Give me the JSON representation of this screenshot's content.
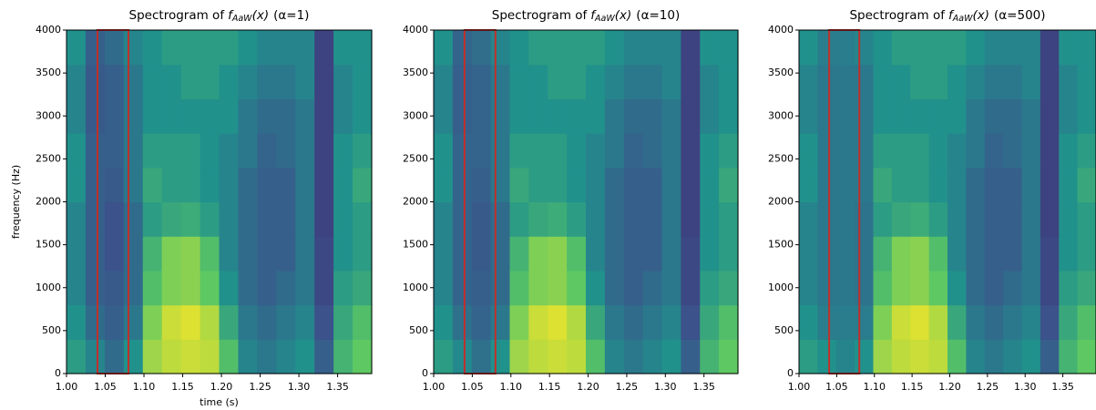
{
  "chart_data": [
    {
      "type": "heatmap",
      "title": [
        "Spectrogram of",
        "f",
        "AaW",
        "(x)",
        "(α=1)"
      ],
      "x_label": "time (s)",
      "y_label": "frequency (Hz)",
      "xlim": [
        1.0,
        1.394
      ],
      "ylim": [
        0,
        4000
      ],
      "xticks": [
        {
          "value": 1.0,
          "label": "1.00"
        },
        {
          "value": 1.05,
          "label": "1.05"
        },
        {
          "value": 1.1,
          "label": "1.10"
        },
        {
          "value": 1.15,
          "label": "1.15"
        },
        {
          "value": 1.2,
          "label": "1.20"
        },
        {
          "value": 1.25,
          "label": "1.25"
        },
        {
          "value": 1.3,
          "label": "1.30"
        },
        {
          "value": 1.35,
          "label": "1.35"
        }
      ],
      "yticks": [
        0,
        500,
        1000,
        1500,
        2000,
        2500,
        3000,
        3500,
        4000
      ],
      "colormap": "viridis",
      "clim": [
        0,
        1
      ],
      "z": [
        [
          0.55,
          0.45,
          0.35,
          0.5,
          0.85,
          0.9,
          0.92,
          0.9,
          0.7,
          0.45,
          0.4,
          0.45,
          0.5,
          0.3,
          0.65,
          0.75
        ],
        [
          0.5,
          0.35,
          0.3,
          0.4,
          0.8,
          0.92,
          0.95,
          0.88,
          0.6,
          0.4,
          0.35,
          0.4,
          0.45,
          0.25,
          0.6,
          0.7
        ],
        [
          0.45,
          0.3,
          0.28,
          0.35,
          0.7,
          0.8,
          0.82,
          0.75,
          0.5,
          0.35,
          0.3,
          0.35,
          0.4,
          0.22,
          0.55,
          0.6
        ],
        [
          0.45,
          0.3,
          0.25,
          0.35,
          0.65,
          0.8,
          0.82,
          0.7,
          0.45,
          0.35,
          0.3,
          0.3,
          0.4,
          0.22,
          0.5,
          0.55
        ],
        [
          0.45,
          0.3,
          0.25,
          0.35,
          0.55,
          0.6,
          0.62,
          0.55,
          0.45,
          0.35,
          0.3,
          0.3,
          0.4,
          0.2,
          0.5,
          0.55
        ],
        [
          0.5,
          0.3,
          0.28,
          0.4,
          0.6,
          0.55,
          0.55,
          0.5,
          0.45,
          0.35,
          0.3,
          0.3,
          0.4,
          0.2,
          0.5,
          0.6
        ],
        [
          0.5,
          0.3,
          0.3,
          0.4,
          0.55,
          0.55,
          0.55,
          0.5,
          0.45,
          0.4,
          0.32,
          0.35,
          0.4,
          0.2,
          0.5,
          0.55
        ],
        [
          0.45,
          0.28,
          0.3,
          0.4,
          0.5,
          0.5,
          0.5,
          0.5,
          0.5,
          0.4,
          0.35,
          0.35,
          0.4,
          0.2,
          0.45,
          0.5
        ],
        [
          0.45,
          0.28,
          0.3,
          0.4,
          0.5,
          0.5,
          0.55,
          0.55,
          0.5,
          0.45,
          0.4,
          0.4,
          0.45,
          0.2,
          0.45,
          0.5
        ],
        [
          0.5,
          0.3,
          0.35,
          0.45,
          0.5,
          0.55,
          0.55,
          0.55,
          0.55,
          0.5,
          0.45,
          0.45,
          0.45,
          0.2,
          0.5,
          0.5
        ]
      ],
      "highlight": {
        "x": [
          1.04,
          1.08
        ],
        "y": [
          0,
          4000
        ],
        "color": "#c0302b"
      }
    },
    {
      "type": "heatmap",
      "title": [
        "Spectrogram of",
        "f",
        "AaW",
        "(x)",
        "(α=10)"
      ],
      "xlim": [
        1.0,
        1.394
      ],
      "ylim": [
        0,
        4000
      ],
      "xticks": [
        {
          "value": 1.0,
          "label": "1.00"
        },
        {
          "value": 1.05,
          "label": "1.05"
        },
        {
          "value": 1.1,
          "label": "1.10"
        },
        {
          "value": 1.15,
          "label": "1.15"
        },
        {
          "value": 1.2,
          "label": "1.20"
        },
        {
          "value": 1.25,
          "label": "1.25"
        },
        {
          "value": 1.3,
          "label": "1.30"
        },
        {
          "value": 1.35,
          "label": "1.35"
        }
      ],
      "yticks": [
        0,
        500,
        1000,
        1500,
        2000,
        2500,
        3000,
        3500,
        4000
      ],
      "colormap": "viridis",
      "clim": [
        0,
        1
      ],
      "z": [
        [
          0.55,
          0.47,
          0.37,
          0.5,
          0.85,
          0.9,
          0.92,
          0.9,
          0.7,
          0.45,
          0.4,
          0.45,
          0.5,
          0.3,
          0.65,
          0.75
        ],
        [
          0.5,
          0.37,
          0.32,
          0.4,
          0.8,
          0.92,
          0.95,
          0.88,
          0.6,
          0.4,
          0.35,
          0.4,
          0.45,
          0.25,
          0.6,
          0.7
        ],
        [
          0.45,
          0.32,
          0.3,
          0.35,
          0.7,
          0.8,
          0.82,
          0.75,
          0.5,
          0.35,
          0.3,
          0.35,
          0.4,
          0.22,
          0.55,
          0.6
        ],
        [
          0.45,
          0.32,
          0.28,
          0.35,
          0.65,
          0.8,
          0.82,
          0.7,
          0.45,
          0.35,
          0.3,
          0.3,
          0.4,
          0.22,
          0.5,
          0.55
        ],
        [
          0.45,
          0.32,
          0.28,
          0.35,
          0.55,
          0.6,
          0.62,
          0.55,
          0.45,
          0.35,
          0.3,
          0.3,
          0.4,
          0.2,
          0.5,
          0.55
        ],
        [
          0.5,
          0.32,
          0.3,
          0.4,
          0.6,
          0.55,
          0.55,
          0.5,
          0.45,
          0.35,
          0.3,
          0.3,
          0.4,
          0.2,
          0.5,
          0.6
        ],
        [
          0.5,
          0.32,
          0.32,
          0.4,
          0.55,
          0.55,
          0.55,
          0.5,
          0.45,
          0.4,
          0.32,
          0.35,
          0.4,
          0.2,
          0.5,
          0.55
        ],
        [
          0.45,
          0.3,
          0.32,
          0.4,
          0.5,
          0.5,
          0.5,
          0.5,
          0.5,
          0.4,
          0.35,
          0.35,
          0.4,
          0.2,
          0.45,
          0.5
        ],
        [
          0.45,
          0.3,
          0.32,
          0.4,
          0.5,
          0.5,
          0.55,
          0.55,
          0.5,
          0.45,
          0.4,
          0.4,
          0.45,
          0.2,
          0.45,
          0.5
        ],
        [
          0.5,
          0.32,
          0.36,
          0.45,
          0.5,
          0.55,
          0.55,
          0.55,
          0.55,
          0.5,
          0.45,
          0.45,
          0.45,
          0.2,
          0.5,
          0.5
        ]
      ],
      "highlight": {
        "x": [
          1.04,
          1.08
        ],
        "y": [
          0,
          4000
        ],
        "color": "#c0302b"
      }
    },
    {
      "type": "heatmap",
      "title": [
        "Spectrogram of",
        "f",
        "AaW",
        "(x)",
        "(α=500)"
      ],
      "xlim": [
        1.0,
        1.394
      ],
      "ylim": [
        0,
        4000
      ],
      "xticks": [
        {
          "value": 1.0,
          "label": "1.00"
        },
        {
          "value": 1.05,
          "label": "1.05"
        },
        {
          "value": 1.1,
          "label": "1.10"
        },
        {
          "value": 1.15,
          "label": "1.15"
        },
        {
          "value": 1.2,
          "label": "1.20"
        },
        {
          "value": 1.25,
          "label": "1.25"
        },
        {
          "value": 1.3,
          "label": "1.30"
        },
        {
          "value": 1.35,
          "label": "1.35"
        }
      ],
      "yticks": [
        0,
        500,
        1000,
        1500,
        2000,
        2500,
        3000,
        3500,
        4000
      ],
      "colormap": "viridis",
      "clim": [
        0,
        1
      ],
      "z": [
        [
          0.55,
          0.5,
          0.45,
          0.5,
          0.85,
          0.9,
          0.92,
          0.9,
          0.7,
          0.45,
          0.4,
          0.45,
          0.5,
          0.3,
          0.65,
          0.75
        ],
        [
          0.5,
          0.42,
          0.42,
          0.42,
          0.8,
          0.92,
          0.95,
          0.88,
          0.6,
          0.4,
          0.35,
          0.4,
          0.45,
          0.25,
          0.6,
          0.7
        ],
        [
          0.45,
          0.4,
          0.4,
          0.38,
          0.7,
          0.8,
          0.82,
          0.75,
          0.5,
          0.35,
          0.3,
          0.35,
          0.4,
          0.22,
          0.55,
          0.6
        ],
        [
          0.45,
          0.4,
          0.4,
          0.38,
          0.65,
          0.8,
          0.82,
          0.7,
          0.45,
          0.35,
          0.3,
          0.3,
          0.4,
          0.22,
          0.5,
          0.55
        ],
        [
          0.45,
          0.4,
          0.4,
          0.38,
          0.55,
          0.6,
          0.62,
          0.55,
          0.45,
          0.35,
          0.3,
          0.3,
          0.4,
          0.2,
          0.5,
          0.55
        ],
        [
          0.5,
          0.4,
          0.4,
          0.4,
          0.6,
          0.55,
          0.55,
          0.5,
          0.45,
          0.35,
          0.3,
          0.3,
          0.4,
          0.2,
          0.5,
          0.6
        ],
        [
          0.5,
          0.4,
          0.4,
          0.4,
          0.55,
          0.55,
          0.55,
          0.5,
          0.45,
          0.4,
          0.32,
          0.35,
          0.4,
          0.2,
          0.5,
          0.55
        ],
        [
          0.45,
          0.4,
          0.4,
          0.4,
          0.5,
          0.5,
          0.5,
          0.5,
          0.5,
          0.4,
          0.35,
          0.35,
          0.4,
          0.2,
          0.45,
          0.5
        ],
        [
          0.45,
          0.4,
          0.4,
          0.4,
          0.5,
          0.5,
          0.55,
          0.55,
          0.5,
          0.45,
          0.4,
          0.4,
          0.45,
          0.2,
          0.45,
          0.5
        ],
        [
          0.5,
          0.42,
          0.42,
          0.45,
          0.5,
          0.55,
          0.55,
          0.55,
          0.55,
          0.5,
          0.45,
          0.45,
          0.45,
          0.2,
          0.5,
          0.5
        ]
      ],
      "highlight": {
        "x": [
          1.04,
          1.08
        ],
        "y": [
          0,
          4000
        ],
        "color": "#c0302b"
      }
    }
  ]
}
